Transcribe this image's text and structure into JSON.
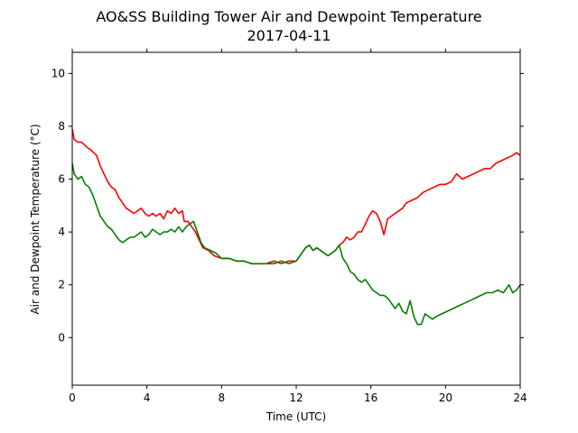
{
  "chart_data": {
    "type": "line",
    "title": "AO&SS Building Tower Air and Dewpoint Temperature",
    "subtitle": "2017-04-11",
    "xlabel": "Time (UTC)",
    "ylabel": "Air and Dewpoint Temperature (°C)",
    "xlim": [
      0,
      24
    ],
    "ylim": [
      -1.8,
      10.8
    ],
    "xticks": [
      0,
      4,
      8,
      12,
      16,
      20,
      24
    ],
    "yticks": [
      0,
      2,
      4,
      6,
      8,
      10
    ],
    "grid": false,
    "legend": "none",
    "series": [
      {
        "color": "#ff0000",
        "x": [
          0,
          0.1,
          0.3,
          0.5,
          0.8,
          1.0,
          1.3,
          1.5,
          1.7,
          1.9,
          2.1,
          2.3,
          2.5,
          2.7,
          2.9,
          3.1,
          3.3,
          3.5,
          3.7,
          3.9,
          4.1,
          4.3,
          4.5,
          4.7,
          4.9,
          5.1,
          5.3,
          5.5,
          5.7,
          5.9,
          6.0,
          6.2,
          6.4,
          6.6,
          6.8,
          7.0,
          7.3,
          7.6,
          8.0,
          8.4,
          8.8,
          9.2,
          9.6,
          10.0,
          10.4,
          10.8,
          11.2,
          11.6,
          12.0,
          12.3,
          12.5,
          12.7,
          12.9,
          13.1,
          13.3,
          13.5,
          13.7,
          13.9,
          14.1,
          14.3,
          14.5,
          14.7,
          14.9,
          15.1,
          15.3,
          15.5,
          15.7,
          15.9,
          16.1,
          16.3,
          16.5,
          16.7,
          16.9,
          17.1,
          17.3,
          17.5,
          17.7,
          17.9,
          18.2,
          18.5,
          18.8,
          19.1,
          19.4,
          19.7,
          20.0,
          20.3,
          20.6,
          20.9,
          21.2,
          21.5,
          21.8,
          22.1,
          22.4,
          22.7,
          23.0,
          23.3,
          23.6,
          23.8,
          24.0
        ],
        "y": [
          7.9,
          7.5,
          7.4,
          7.4,
          7.2,
          7.1,
          6.9,
          6.5,
          6.2,
          5.9,
          5.7,
          5.6,
          5.3,
          5.1,
          4.9,
          4.8,
          4.7,
          4.8,
          4.9,
          4.7,
          4.6,
          4.7,
          4.6,
          4.7,
          4.5,
          4.8,
          4.7,
          4.9,
          4.7,
          4.8,
          4.4,
          4.4,
          4.2,
          4.0,
          3.7,
          3.4,
          3.3,
          3.1,
          3.0,
          3.0,
          2.9,
          2.9,
          2.8,
          2.8,
          2.8,
          2.9,
          2.8,
          2.9,
          2.9,
          3.2,
          3.4,
          3.5,
          3.3,
          3.4,
          3.3,
          3.2,
          3.1,
          3.2,
          3.3,
          3.5,
          3.6,
          3.8,
          3.7,
          3.8,
          4.0,
          4.0,
          4.3,
          4.6,
          4.8,
          4.7,
          4.4,
          3.9,
          4.5,
          4.6,
          4.7,
          4.8,
          4.9,
          5.1,
          5.2,
          5.3,
          5.5,
          5.6,
          5.7,
          5.8,
          5.8,
          5.9,
          6.2,
          6.0,
          6.1,
          6.2,
          6.3,
          6.4,
          6.4,
          6.6,
          6.7,
          6.8,
          6.9,
          7.0,
          6.9
        ]
      },
      {
        "color": "#008000",
        "x": [
          0,
          0.1,
          0.3,
          0.5,
          0.7,
          0.9,
          1.1,
          1.3,
          1.5,
          1.7,
          1.9,
          2.1,
          2.3,
          2.5,
          2.7,
          2.9,
          3.1,
          3.3,
          3.5,
          3.7,
          3.9,
          4.1,
          4.3,
          4.5,
          4.7,
          4.9,
          5.1,
          5.3,
          5.5,
          5.7,
          5.9,
          6.1,
          6.3,
          6.5,
          6.7,
          6.9,
          7.1,
          7.4,
          7.7,
          8.0,
          8.4,
          8.8,
          9.2,
          9.6,
          10.0,
          10.4,
          10.8,
          11.2,
          11.6,
          12.0,
          12.3,
          12.5,
          12.7,
          12.9,
          13.1,
          13.3,
          13.5,
          13.7,
          13.9,
          14.1,
          14.3,
          14.5,
          14.7,
          14.9,
          15.1,
          15.3,
          15.5,
          15.7,
          15.9,
          16.1,
          16.3,
          16.5,
          16.7,
          16.9,
          17.1,
          17.3,
          17.5,
          17.7,
          17.9,
          18.1,
          18.3,
          18.5,
          18.7,
          18.9,
          19.1,
          19.3,
          19.5,
          19.8,
          20.1,
          20.4,
          20.7,
          21.0,
          21.3,
          21.6,
          21.9,
          22.2,
          22.5,
          22.8,
          23.1,
          23.4,
          23.6,
          23.8,
          24.0
        ],
        "y": [
          6.6,
          6.2,
          6.0,
          6.1,
          5.8,
          5.7,
          5.4,
          5.0,
          4.6,
          4.4,
          4.2,
          4.1,
          3.9,
          3.7,
          3.6,
          3.7,
          3.8,
          3.8,
          3.9,
          4.0,
          3.8,
          3.9,
          4.1,
          4.0,
          3.9,
          4.0,
          4.0,
          4.1,
          4.0,
          4.2,
          4.0,
          4.2,
          4.3,
          4.4,
          4.0,
          3.6,
          3.4,
          3.3,
          3.2,
          3.0,
          3.0,
          2.9,
          2.9,
          2.8,
          2.8,
          2.8,
          2.8,
          2.9,
          2.8,
          2.9,
          3.2,
          3.4,
          3.5,
          3.3,
          3.4,
          3.3,
          3.2,
          3.1,
          3.2,
          3.3,
          3.5,
          3.0,
          2.8,
          2.5,
          2.4,
          2.2,
          2.1,
          2.2,
          2.0,
          1.8,
          1.7,
          1.6,
          1.6,
          1.5,
          1.3,
          1.1,
          1.3,
          1.0,
          0.9,
          1.4,
          0.8,
          0.5,
          0.5,
          0.9,
          0.8,
          0.7,
          0.8,
          0.9,
          1.0,
          1.1,
          1.2,
          1.3,
          1.4,
          1.5,
          1.6,
          1.7,
          1.7,
          1.8,
          1.7,
          2.0,
          1.7,
          1.8,
          2.0
        ]
      }
    ]
  }
}
